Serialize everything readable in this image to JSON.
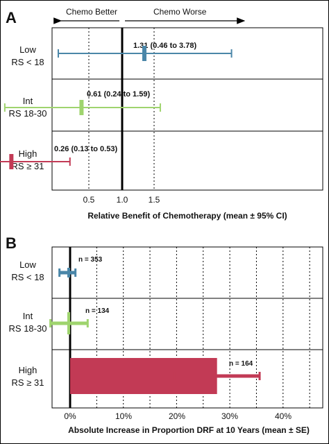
{
  "colors": {
    "low": "#4a86a8",
    "int": "#9fd46e",
    "high": "#c23a55",
    "axis": "#000000"
  },
  "chart_data": [
    {
      "panel": "A",
      "type": "forest",
      "xlabel": "Relative Benefit of Chemotherapy (mean ± 95% CI)",
      "direction_left": "Chemo Better",
      "direction_right": "Chemo Worse",
      "xticks": [
        "0.5",
        "1.0",
        "1.5"
      ],
      "groups": [
        {
          "label1": "Low",
          "label2": "RS < 18",
          "mean": 1.31,
          "lo": 0.46,
          "hi": 3.78,
          "text": "1.31 (0.46 to 3.78)",
          "color": "#4a86a8"
        },
        {
          "label1": "Int",
          "label2": "RS 18-30",
          "mean": 0.61,
          "lo": 0.24,
          "hi": 1.59,
          "text": "0.61 (0.24 to 1.59)",
          "color": "#9fd46e"
        },
        {
          "label1": "High",
          "label2": "RS ≥ 31",
          "mean": 0.26,
          "lo": 0.13,
          "hi": 0.53,
          "text": "0.26 (0.13 to 0.53)",
          "color": "#c23a55"
        }
      ]
    },
    {
      "panel": "B",
      "type": "bar",
      "xlabel": "Absolute Increase in Proportion DRF at 10 Years (mean ± SE)",
      "xticks": [
        "0%",
        "10%",
        "20%",
        "30%",
        "40%"
      ],
      "xlim": [
        0,
        40
      ],
      "groups": [
        {
          "label1": "Low",
          "label2": "RS < 18",
          "value": -0.5,
          "se": 1.5,
          "n": "n = 353",
          "color": "#4a86a8"
        },
        {
          "label1": "Int",
          "label2": "RS 18-30",
          "value": -0.2,
          "se": 3.5,
          "n": "n = 134",
          "color": "#9fd46e"
        },
        {
          "label1": "High",
          "label2": "RS ≥ 31",
          "value": 27.6,
          "se": 8.0,
          "n": "n = 164",
          "color": "#c23a55"
        }
      ]
    }
  ]
}
